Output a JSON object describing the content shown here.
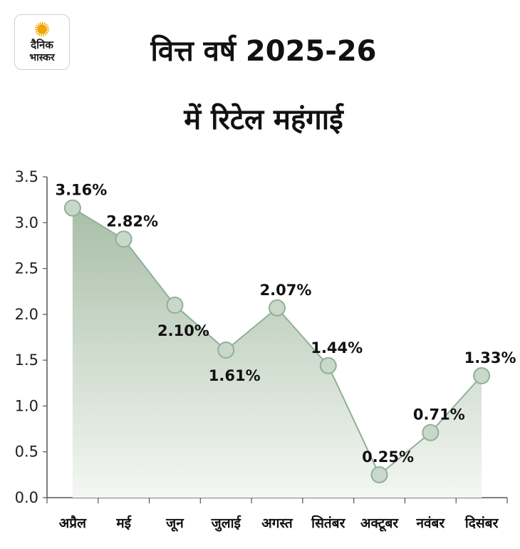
{
  "logo": {
    "line1": "दैनिक",
    "line2": "भास्कर",
    "icon": "sun-icon"
  },
  "header": {
    "title_line1": "वित्त वर्ष 2025-26",
    "title_line2": "में रिटेल महंगाई"
  },
  "colors": {
    "line": "#8fb09a",
    "marker_fill": "#c9d8c9",
    "marker_stroke": "#8fb09a",
    "area_top": "#a9bfa8",
    "area_bottom": "#f4f7f3",
    "axis": "#555555"
  },
  "chart_data": {
    "type": "area",
    "title": "वित्त वर्ष 2025-26 में रिटेल महंगाई",
    "categories": [
      "अप्रैल",
      "मई",
      "जून",
      "जुलाई",
      "अगस्त",
      "सितंबर",
      "अक्टूबर",
      "नवंबर",
      "दिसंबर"
    ],
    "values": [
      3.16,
      2.82,
      2.1,
      1.61,
      2.07,
      1.44,
      0.25,
      0.71,
      1.33
    ],
    "labels": [
      "3.16%",
      "2.82%",
      "2.10%",
      "1.61%",
      "2.07%",
      "1.44%",
      "0.25%",
      "0.71%",
      "1.33%"
    ],
    "label_positions": [
      "above",
      "above",
      "below",
      "below",
      "above",
      "above",
      "above",
      "above",
      "above"
    ],
    "yticks": [
      "0.0",
      "0.5",
      "1.0",
      "1.5",
      "2.0",
      "2.5",
      "3.0",
      "3.5"
    ],
    "ylim": [
      0,
      3.5
    ],
    "xlabel": "",
    "ylabel": "",
    "grid": false
  }
}
